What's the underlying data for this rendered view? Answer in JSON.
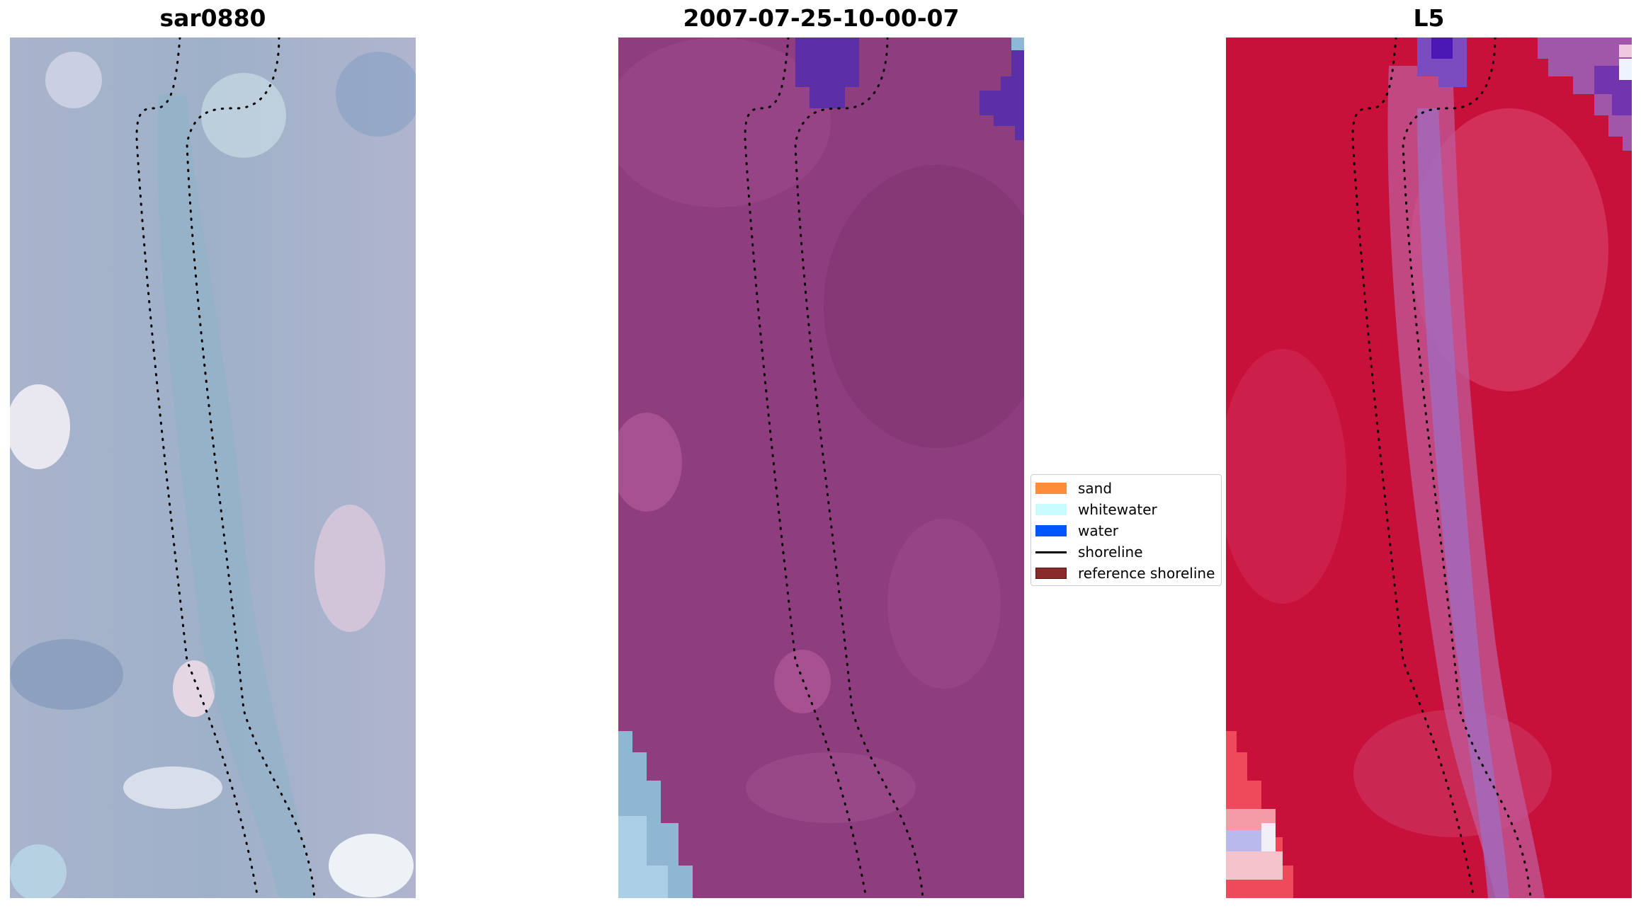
{
  "panels": [
    {
      "title": "sar0880",
      "image": "sar-composite-image"
    },
    {
      "title": "2007-07-25-10-00-07",
      "image": "classified-false-color-image"
    },
    {
      "title": "L5",
      "image": "landsat-band-image"
    }
  ],
  "legend": {
    "entries": [
      {
        "label": "sand",
        "color": "#ff8c3a",
        "style": "patch"
      },
      {
        "label": "whitewater",
        "color": "#c8fcff",
        "style": "patch"
      },
      {
        "label": "water",
        "color": "#0055ff",
        "style": "patch"
      },
      {
        "label": "shoreline",
        "color": "#000000",
        "style": "line"
      },
      {
        "label": "reference shoreline",
        "color": "#8b2a2a",
        "style": "patch"
      }
    ]
  },
  "colors": {
    "panel1_base": "#a6b2c9",
    "panel2_base": "#8e3d7e",
    "panel3_base": "#c7103a",
    "shoreline_dots": "#000000"
  }
}
